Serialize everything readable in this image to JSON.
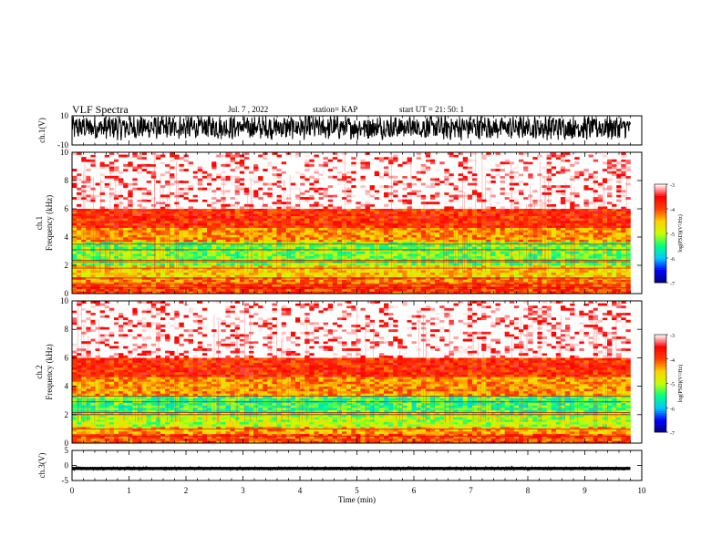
{
  "header": {
    "title": "VLF Spectra",
    "date": "Jul. 7 , 2022",
    "station": "station= KAP",
    "start_ut": "start UT = 21: 50: 1"
  },
  "chart_data": [
    {
      "type": "line",
      "name": "ch1-waveform",
      "ylabel": "ch.1(V)",
      "ylim": [
        -10,
        10
      ],
      "yticks": [
        10,
        -10
      ],
      "xlim": [
        0,
        10
      ],
      "data_xmax": 9.8,
      "value_range": [
        -10,
        10
      ],
      "note": "dense waveform mostly between -5 and 10 V"
    },
    {
      "type": "heatmap",
      "name": "ch1-spectrogram",
      "ylabel": "ch.1 Frequency (kHz)",
      "ylim": [
        0,
        10
      ],
      "yticks": [
        0,
        2,
        4,
        6,
        8,
        10
      ],
      "xlim": [
        0,
        10
      ],
      "data_xmax": 9.8,
      "colorbar": {
        "label": "log(PSD)(V²/Hz)",
        "range": [
          -7,
          -3
        ],
        "ticks": [
          -3,
          -4,
          -5,
          -6,
          -7
        ]
      },
      "bands": [
        {
          "f_lo": 0.0,
          "f_hi": 0.6,
          "level": -3.9
        },
        {
          "f_lo": 0.6,
          "f_hi": 1.2,
          "level": -4.2
        },
        {
          "f_lo": 1.2,
          "f_hi": 2.0,
          "level": -4.6
        },
        {
          "f_lo": 2.0,
          "f_hi": 3.6,
          "level": -5.2
        },
        {
          "f_lo": 3.6,
          "f_hi": 4.6,
          "level": -4.3
        },
        {
          "f_lo": 4.6,
          "f_hi": 6.0,
          "level": -3.8
        },
        {
          "f_lo": 6.0,
          "f_hi": 10.0,
          "level": -3.2
        }
      ],
      "lines_khz": [
        0.4,
        0.7,
        1.1,
        1.8,
        2.25,
        2.35,
        3.1,
        3.5
      ]
    },
    {
      "type": "heatmap",
      "name": "ch2-spectrogram",
      "ylabel": "ch.2 Frequency (kHz)",
      "ylim": [
        0,
        10
      ],
      "yticks": [
        0,
        2,
        4,
        6,
        8,
        10
      ],
      "xlim": [
        0,
        10
      ],
      "data_xmax": 9.8,
      "colorbar": {
        "label": "log(PSD)(V²/Hz)",
        "range": [
          -7,
          -3
        ],
        "ticks": [
          -3,
          -4,
          -5,
          -6,
          -7
        ]
      },
      "bands": [
        {
          "f_lo": 0.0,
          "f_hi": 0.6,
          "level": -4.0
        },
        {
          "f_lo": 0.6,
          "f_hi": 1.2,
          "level": -4.4
        },
        {
          "f_lo": 1.2,
          "f_hi": 2.0,
          "level": -5.0
        },
        {
          "f_lo": 2.0,
          "f_hi": 3.4,
          "level": -5.4
        },
        {
          "f_lo": 3.4,
          "f_hi": 4.6,
          "level": -4.3
        },
        {
          "f_lo": 4.6,
          "f_hi": 6.0,
          "level": -3.8
        },
        {
          "f_lo": 6.0,
          "f_hi": 10.0,
          "level": -3.2
        }
      ],
      "lines_khz": [
        0.5,
        1.0,
        2.0,
        2.15,
        2.9,
        3.3
      ]
    },
    {
      "type": "line",
      "name": "ch3-waveform",
      "ylabel": "ch.3(V)",
      "ylim": [
        -5,
        5
      ],
      "yticks": [
        5,
        0,
        -5
      ],
      "xlim": [
        0,
        10
      ],
      "data_xmax": 9.8,
      "value_range": [
        -1.5,
        -0.5
      ],
      "note": "dense waveform in a thin band around -1 V"
    }
  ],
  "x_axis": {
    "label": "Time (min)",
    "ticks": [
      "0",
      "1",
      "2",
      "3",
      "4",
      "5",
      "6",
      "7",
      "8",
      "9",
      "10"
    ]
  },
  "colors": {
    "axes": "#000000",
    "waveform": "#000000",
    "colormap": [
      "#000080",
      "#0000ff",
      "#00c8ff",
      "#00ff80",
      "#c8ff00",
      "#ffd000",
      "#ff4000",
      "#ff0000",
      "#ffffff"
    ]
  }
}
